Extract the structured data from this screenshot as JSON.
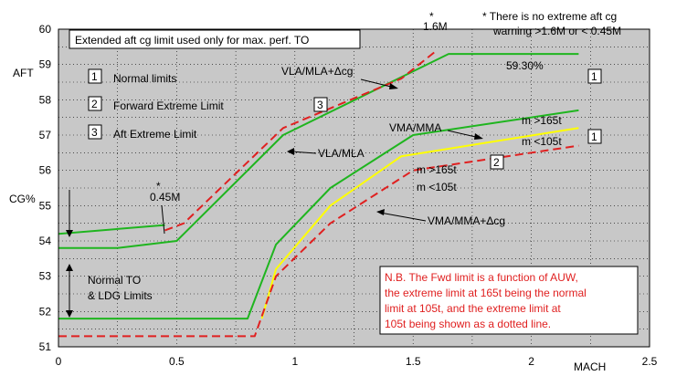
{
  "chart_data": {
    "type": "line",
    "xlabel": "MACH",
    "ylabel_top": "AFT",
    "ylabel_mid": "CG%",
    "xlim": [
      0,
      2.5
    ],
    "ylim": [
      51,
      60
    ],
    "xticks": [
      "0",
      "0.5",
      "1",
      "1.5",
      "2",
      "2.5"
    ],
    "yticks": [
      "51",
      "52",
      "53",
      "54",
      "55",
      "56",
      "57",
      "58",
      "59",
      "60"
    ],
    "grid": true,
    "background": "#c8c8c8",
    "colors": {
      "green": "#1fb51f",
      "red": "#e02020",
      "yellow": "#ffff00"
    },
    "series": [
      {
        "style": "green-solid",
        "points": [
          [
            0,
            54.2
          ],
          [
            0.45,
            54.45
          ]
        ]
      },
      {
        "style": "green-solid",
        "points": [
          [
            0,
            53.8
          ],
          [
            0.25,
            53.8
          ],
          [
            0.5,
            54.0
          ],
          [
            0.95,
            57.0
          ],
          [
            1.65,
            59.3
          ],
          [
            2.2,
            59.3
          ]
        ]
      },
      {
        "style": "red-dashed",
        "points": [
          [
            0.45,
            54.3
          ],
          [
            0.53,
            54.5
          ],
          [
            0.95,
            57.2
          ],
          [
            1.2,
            57.9
          ],
          [
            1.45,
            58.6
          ],
          [
            1.6,
            59.4
          ]
        ]
      },
      {
        "style": "green-solid",
        "points": [
          [
            0,
            51.8
          ],
          [
            0.8,
            51.8
          ],
          [
            0.92,
            53.9
          ],
          [
            1.15,
            55.5
          ],
          [
            1.5,
            57.0
          ],
          [
            2.2,
            57.7
          ]
        ]
      },
      {
        "style": "yellow-solid",
        "points": [
          [
            0.86,
            51.8
          ],
          [
            0.92,
            53.2
          ],
          [
            1.15,
            55.0
          ],
          [
            1.45,
            56.4
          ],
          [
            2.2,
            57.2
          ]
        ]
      },
      {
        "style": "red-dashed",
        "points": [
          [
            0,
            51.3
          ],
          [
            0.83,
            51.3
          ],
          [
            0.92,
            53.0
          ],
          [
            1.15,
            54.5
          ],
          [
            1.5,
            56.0
          ],
          [
            2.2,
            56.7
          ]
        ]
      }
    ],
    "annotations": {
      "box_note": "Extended aft cg limit used only for max. perf. TO",
      "footnote_line1": "* There is no extreme aft cg",
      "footnote_line2": "warning >1.6M or < 0.45M",
      "star1_a": "*",
      "star1_b": "1.6M",
      "star2_a": "*",
      "star2_b": "0.45M",
      "legend": [
        {
          "num": "1",
          "label": "Normal limits"
        },
        {
          "num": "2",
          "label": "Forward Extreme Limit"
        },
        {
          "num": "3",
          "label": "Aft Extreme Limit"
        }
      ],
      "vla_mla_dcg": "VLA/MLA+Δcg",
      "pct": "59.30%",
      "vla_mla": "VLA/MLA",
      "vma_mma": "VMA/MMA",
      "vma_mma_dcg": "VMA/MMA+Δcg",
      "m165_a": "m >165t",
      "m105_a": "m <105t",
      "m165_b": "m >165t",
      "m105_b": "m <105t",
      "normal_to_1": "Normal TO",
      "normal_to_2": "& LDG Limits",
      "nb_lines": [
        "N.B. The Fwd  limit is a function of AUW,",
        "the extreme limit at 165t being the normal",
        "limit at 105t, and the extreme limit at",
        "105t being shown as a dotted line."
      ],
      "box_num_1": "1",
      "box_num_2": "2",
      "box_num_3": "3",
      "box_num_1b": "1"
    }
  }
}
